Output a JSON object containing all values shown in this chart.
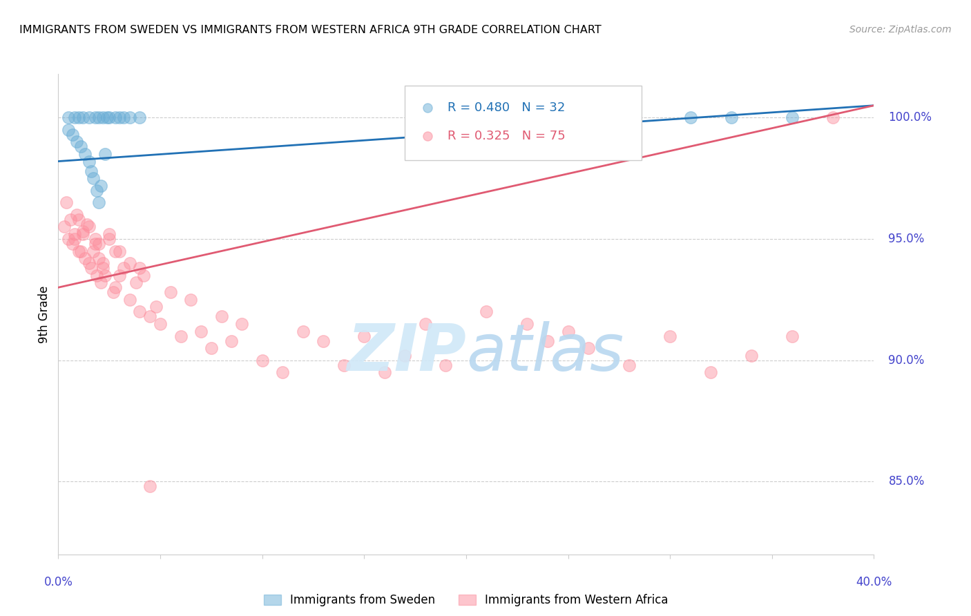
{
  "title": "IMMIGRANTS FROM SWEDEN VS IMMIGRANTS FROM WESTERN AFRICA 9TH GRADE CORRELATION CHART",
  "source": "Source: ZipAtlas.com",
  "ylabel": "9th Grade",
  "xlim": [
    0.0,
    0.4
  ],
  "ylim": [
    82.0,
    101.8
  ],
  "blue_R": 0.48,
  "blue_N": 32,
  "pink_R": 0.325,
  "pink_N": 75,
  "legend_label_blue": "Immigrants from Sweden",
  "legend_label_pink": "Immigrants from Western Africa",
  "blue_color": "#6baed6",
  "pink_color": "#fc8d9c",
  "blue_line_color": "#2171b5",
  "pink_line_color": "#e05a72",
  "background_color": "#ffffff",
  "grid_color": "#cccccc",
  "axis_label_color": "#4444cc",
  "blue_scatter_x": [
    0.005,
    0.008,
    0.01,
    0.012,
    0.015,
    0.018,
    0.02,
    0.022,
    0.024,
    0.025,
    0.028,
    0.03,
    0.032,
    0.035,
    0.04,
    0.005,
    0.007,
    0.009,
    0.011,
    0.013,
    0.015,
    0.016,
    0.017,
    0.019,
    0.02,
    0.021,
    0.023,
    0.185,
    0.195,
    0.31,
    0.33,
    0.36
  ],
  "blue_scatter_y": [
    100.0,
    100.0,
    100.0,
    100.0,
    100.0,
    100.0,
    100.0,
    100.0,
    100.0,
    100.0,
    100.0,
    100.0,
    100.0,
    100.0,
    100.0,
    99.5,
    99.3,
    99.0,
    98.8,
    98.5,
    98.2,
    97.8,
    97.5,
    97.0,
    96.5,
    97.2,
    98.5,
    100.0,
    100.0,
    100.0,
    100.0,
    100.0
  ],
  "pink_scatter_x": [
    0.003,
    0.005,
    0.007,
    0.008,
    0.009,
    0.01,
    0.011,
    0.012,
    0.013,
    0.014,
    0.015,
    0.016,
    0.017,
    0.018,
    0.019,
    0.02,
    0.021,
    0.022,
    0.023,
    0.025,
    0.027,
    0.028,
    0.03,
    0.032,
    0.035,
    0.038,
    0.04,
    0.042,
    0.045,
    0.048,
    0.05,
    0.055,
    0.06,
    0.065,
    0.07,
    0.075,
    0.08,
    0.085,
    0.09,
    0.1,
    0.11,
    0.12,
    0.13,
    0.14,
    0.15,
    0.16,
    0.17,
    0.18,
    0.19,
    0.21,
    0.23,
    0.24,
    0.25,
    0.26,
    0.28,
    0.3,
    0.32,
    0.34,
    0.36,
    0.38,
    0.004,
    0.006,
    0.008,
    0.01,
    0.012,
    0.015,
    0.018,
    0.02,
    0.022,
    0.025,
    0.028,
    0.03,
    0.035,
    0.04,
    0.045
  ],
  "pink_scatter_y": [
    95.5,
    95.0,
    94.8,
    95.2,
    96.0,
    95.8,
    94.5,
    95.3,
    94.2,
    95.6,
    94.0,
    93.8,
    94.5,
    95.0,
    93.5,
    94.8,
    93.2,
    94.0,
    93.5,
    95.2,
    92.8,
    93.0,
    94.5,
    93.8,
    92.5,
    93.2,
    92.0,
    93.5,
    91.8,
    92.2,
    91.5,
    92.8,
    91.0,
    92.5,
    91.2,
    90.5,
    91.8,
    90.8,
    91.5,
    90.0,
    89.5,
    91.2,
    90.8,
    89.8,
    91.0,
    89.5,
    90.2,
    91.5,
    89.8,
    92.0,
    91.5,
    90.8,
    91.2,
    90.5,
    89.8,
    91.0,
    89.5,
    90.2,
    91.0,
    100.0,
    96.5,
    95.8,
    95.0,
    94.5,
    95.2,
    95.5,
    94.8,
    94.2,
    93.8,
    95.0,
    94.5,
    93.5,
    94.0,
    93.8,
    84.8
  ],
  "blue_trendline_x": [
    0.0,
    0.4
  ],
  "blue_trendline_y": [
    98.2,
    100.5
  ],
  "pink_trendline_x": [
    0.0,
    0.4
  ],
  "pink_trendline_y": [
    93.0,
    100.5
  ]
}
